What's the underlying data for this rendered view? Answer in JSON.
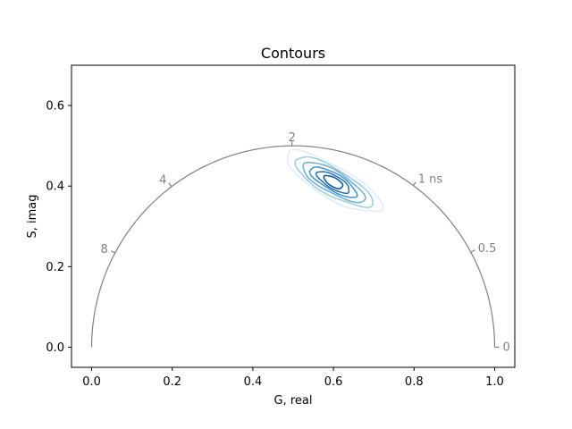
{
  "chart_data": {
    "type": "contour",
    "title": "Contours",
    "xlabel": "G, real",
    "ylabel": "S, imag",
    "xlim": [
      -0.05,
      1.05
    ],
    "ylim": [
      -0.05,
      0.7
    ],
    "x_ticks": [
      {
        "value": 0.0,
        "label": "0.0"
      },
      {
        "value": 0.2,
        "label": "0.2"
      },
      {
        "value": 0.4,
        "label": "0.4"
      },
      {
        "value": 0.6,
        "label": "0.6"
      },
      {
        "value": 0.8,
        "label": "0.8"
      },
      {
        "value": 1.0,
        "label": "1.0"
      }
    ],
    "y_ticks": [
      {
        "value": 0.0,
        "label": "0.0"
      },
      {
        "value": 0.2,
        "label": "0.2"
      },
      {
        "value": 0.4,
        "label": "0.4"
      },
      {
        "value": 0.6,
        "label": "0.6"
      }
    ],
    "grid": false,
    "universal_semicircle": {
      "center": [
        0.5,
        0.0
      ],
      "radius": 0.5,
      "color": "#808080",
      "lifetime_marks": [
        {
          "label": "0",
          "g": 1.0,
          "s": 0.0
        },
        {
          "label": "0.5",
          "g": 0.941,
          "s": 0.236
        },
        {
          "label": "1 ns",
          "g": 0.798,
          "s": 0.401
        },
        {
          "label": "2",
          "g": 0.497,
          "s": 0.5
        },
        {
          "label": "4",
          "g": 0.198,
          "s": 0.399
        },
        {
          "label": "8",
          "g": 0.058,
          "s": 0.234
        }
      ]
    },
    "contours": {
      "center": [
        0.6,
        0.41
      ],
      "rotation_deg": -30,
      "colormap": "Blues",
      "levels": [
        {
          "a": 0.135,
          "b": 0.04,
          "color": "#deebf7"
        },
        {
          "a": 0.11,
          "b": 0.033,
          "color": "#9ecae1"
        },
        {
          "a": 0.088,
          "b": 0.027,
          "color": "#6baed6"
        },
        {
          "a": 0.066,
          "b": 0.021,
          "color": "#4292c6"
        },
        {
          "a": 0.046,
          "b": 0.016,
          "color": "#2171b5"
        },
        {
          "a": 0.026,
          "b": 0.011,
          "color": "#08519c"
        }
      ]
    }
  }
}
